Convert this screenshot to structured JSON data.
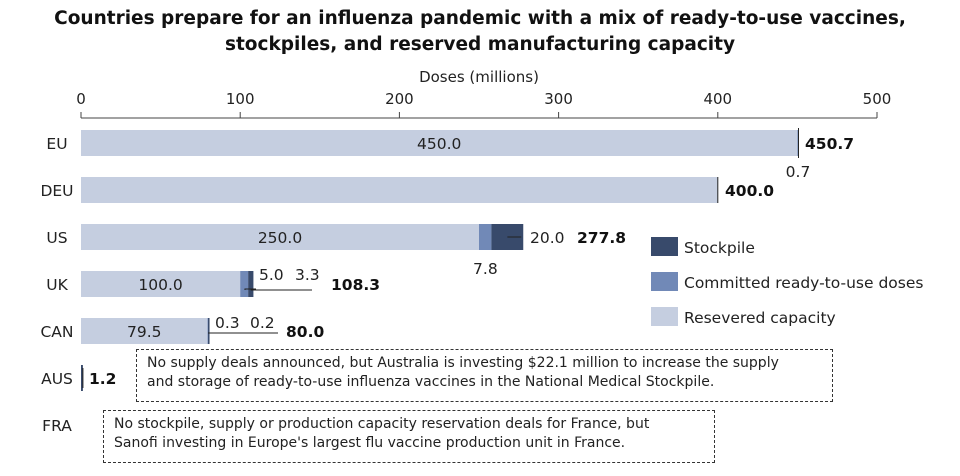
{
  "chart_data": {
    "type": "bar",
    "orientation": "horizontal",
    "stacked": true,
    "title_line1": "Countries prepare for an influenza pandemic with a mix of ready-to-use vaccines,",
    "title_line2": "stockpiles, and reserved manufacturing capacity",
    "xlabel": "Doses (millions)",
    "xlim": [
      0,
      500
    ],
    "xticks": [
      "0",
      "100",
      "200",
      "300",
      "400",
      "500"
    ],
    "categories": [
      "EU",
      "DEU",
      "US",
      "UK",
      "CAN",
      "AUS",
      "FRA"
    ],
    "series": [
      {
        "name": "Resevered capacity",
        "color": "#c5cee0",
        "values": [
          450.0,
          400.0,
          250.0,
          100.0,
          79.5,
          0,
          0
        ]
      },
      {
        "name": "Committed ready-to-use doses",
        "color": "#7189b7",
        "values": [
          0.7,
          0,
          7.8,
          5.0,
          0.3,
          0,
          0
        ]
      },
      {
        "name": "Stockpile",
        "color": "#384a6b",
        "values": [
          0,
          0,
          20.0,
          3.3,
          0.2,
          1.2,
          0
        ]
      }
    ],
    "segment_labels": [
      {
        "cat": "EU",
        "text": "450.0"
      },
      {
        "cat": "EU",
        "text": "0.7"
      },
      {
        "cat": "DEU",
        "text": ""
      },
      {
        "cat": "US",
        "text": "250.0"
      },
      {
        "cat": "US",
        "text": "7.8"
      },
      {
        "cat": "US",
        "text": "20.0"
      },
      {
        "cat": "UK",
        "text": "100.0"
      },
      {
        "cat": "UK",
        "text": "5.0"
      },
      {
        "cat": "UK",
        "text": "3.3"
      },
      {
        "cat": "CAN",
        "text": "79.5"
      },
      {
        "cat": "CAN",
        "text": "0.3"
      },
      {
        "cat": "CAN",
        "text": "0.2"
      }
    ],
    "totals": [
      "450.7",
      "400.0",
      "277.8",
      "108.3",
      "80.0",
      "1.2",
      ""
    ],
    "legend": [
      "Stockpile",
      "Committed ready-to-use doses",
      "Resevered capacity"
    ],
    "legend_position": "right",
    "grid": false
  },
  "notes": {
    "aus_line1": "No supply deals announced, but Australia is investing $22.1 million to  increase the supply",
    "aus_line2": "and storage of ready-to-use influenza vaccines in the National Medical Stockpile.",
    "fra_line1": "No stockpile, supply or production capacity reservation deals for France, but",
    "fra_line2": "Sanofi investing in Europe's largest flu vaccine production unit in France."
  }
}
